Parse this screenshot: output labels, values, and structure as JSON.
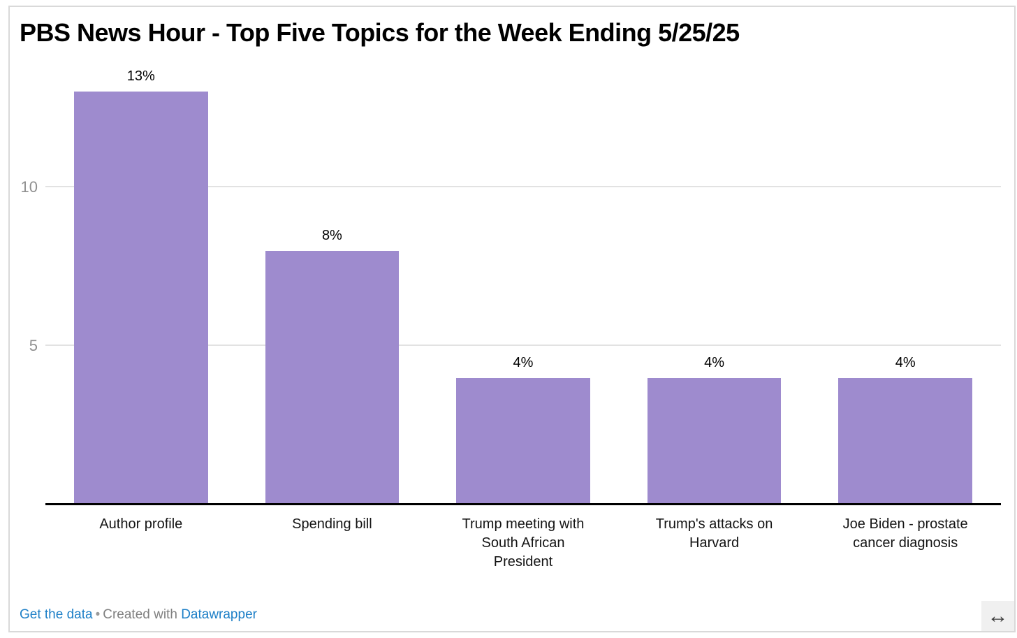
{
  "chart_data": {
    "type": "bar",
    "title": "PBS News Hour - Top Five Topics for the Week Ending 5/25/25",
    "categories": [
      "Author profile",
      "Spending bill",
      "Trump meeting with South African President",
      "Trump's attacks on Harvard",
      "Joe Biden - prostate cancer diagnosis"
    ],
    "values": [
      13,
      8,
      4,
      4,
      4
    ],
    "value_labels": [
      "13%",
      "8%",
      "4%",
      "4%",
      "4%"
    ],
    "unit": "%",
    "y_ticks": [
      5,
      10
    ],
    "ylim": [
      0,
      13.8
    ],
    "grid": true,
    "legend": "none",
    "bar_color": "#9e8bce"
  },
  "footer": {
    "get_data_label": "Get the data",
    "separator": "•",
    "created_with": "Created with",
    "brand_link_label": "Datawrapper"
  },
  "icons": {
    "resize_arrow": "↔"
  },
  "colors": {
    "bar": "#9e8bce",
    "gridline": "#e2e2e2",
    "baseline": "#000000",
    "axis_label": "#909090",
    "link_blue": "#1d7fc7",
    "card_border": "#d9d9d9"
  }
}
